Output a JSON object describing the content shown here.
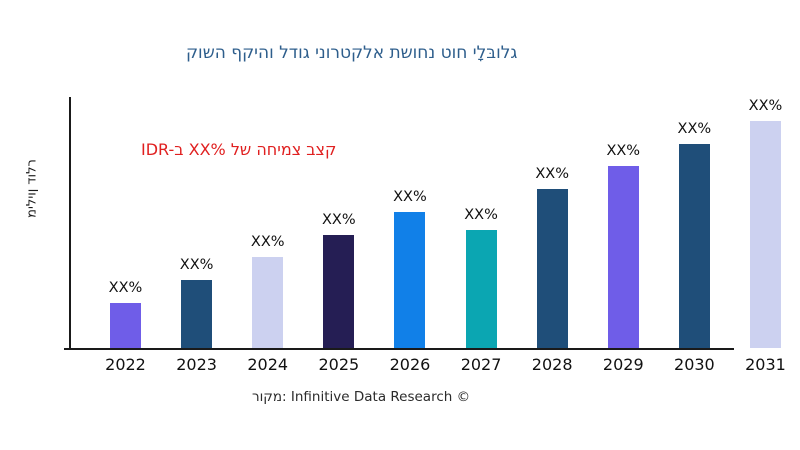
{
  "title": {
    "text": "קושה ףקיהו לדוג ינורטקלא תשוחנ טוח ילָבּולג",
    "color": "#2e5e8c"
  },
  "annotation": {
    "text": "IDR-ב XX% לש החימצ בצק",
    "color": "#e02020"
  },
  "y_axis": {
    "label": "מיליון דולר"
  },
  "source": {
    "text": "רוקמ: Infinitive Data Research ©"
  },
  "axis_color": "#1a1a1a",
  "chart_data": {
    "type": "bar",
    "title": "קושה ףקיהו לדוג ינורטקלא תשוחנ טוח ילָבּולג",
    "categories": [
      "2022",
      "2023",
      "2024",
      "2025",
      "2026",
      "2027",
      "2028",
      "2029",
      "2030",
      "2031"
    ],
    "values": [
      20,
      30,
      40,
      50,
      60,
      52,
      70,
      80,
      90,
      100
    ],
    "values_note": "no numeric axis shown; bar heights estimated in relative units (2031 = 100); data labels are placeholder percentages",
    "bar_labels": [
      "XX%",
      "XX%",
      "XX%",
      "XX%",
      "XX%",
      "XX%",
      "XX%",
      "XX%",
      "XX%",
      "XX%"
    ],
    "bar_colors": [
      "#6f5de8",
      "#1f4e79",
      "#ccd1f0",
      "#251e54",
      "#1180e8",
      "#0ba6b2",
      "#1f4e79",
      "#6f5de8",
      "#1f4e79",
      "#ccd1f0"
    ],
    "xlabel": "",
    "ylabel": "מיליון דולר",
    "ylim": [
      0,
      105
    ],
    "grid": false,
    "legend": false,
    "annotation": "IDR-ב XX% לש החימצ בצק",
    "source": "רוקמ: Infinitive Data Research ©"
  }
}
